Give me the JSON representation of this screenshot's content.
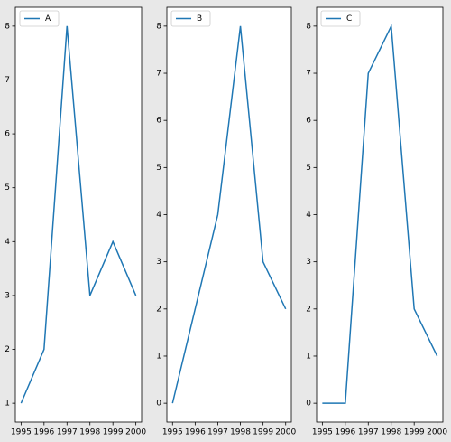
{
  "chart_data": [
    {
      "type": "line",
      "x": [
        1995,
        1996,
        1997,
        1998,
        1999,
        2000
      ],
      "series": [
        {
          "name": "A",
          "color": "#1f77b4",
          "values": [
            1,
            2,
            8,
            3,
            4,
            3
          ]
        }
      ],
      "xlim": [
        1994.75,
        2000.25
      ],
      "ylim": [
        0.65,
        8.35
      ],
      "xticks": [
        1995,
        1996,
        1997,
        1998,
        1999,
        2000
      ],
      "yticks": [
        1,
        2,
        3,
        4,
        5,
        6,
        7,
        8
      ],
      "legend": "upper left"
    },
    {
      "type": "line",
      "x": [
        1995,
        1996,
        1997,
        1998,
        1999,
        2000
      ],
      "series": [
        {
          "name": "B",
          "color": "#1f77b4",
          "values": [
            0,
            2,
            4,
            8,
            3,
            2
          ]
        }
      ],
      "xlim": [
        1994.75,
        2000.25
      ],
      "ylim": [
        -0.4,
        8.4
      ],
      "xticks": [
        1995,
        1996,
        1997,
        1998,
        1999,
        2000
      ],
      "yticks": [
        0,
        1,
        2,
        3,
        4,
        5,
        6,
        7,
        8
      ],
      "legend": "upper left"
    },
    {
      "type": "line",
      "x": [
        1995,
        1996,
        1997,
        1998,
        1999,
        2000
      ],
      "series": [
        {
          "name": "C",
          "color": "#1f77b4",
          "values": [
            0,
            0,
            7,
            8,
            2,
            1
          ]
        }
      ],
      "xlim": [
        1994.75,
        2000.25
      ],
      "ylim": [
        -0.4,
        8.4
      ],
      "xticks": [
        1995,
        1996,
        1997,
        1998,
        1999,
        2000
      ],
      "yticks": [
        0,
        1,
        2,
        3,
        4,
        5,
        6,
        7,
        8
      ],
      "legend": "upper left"
    }
  ]
}
